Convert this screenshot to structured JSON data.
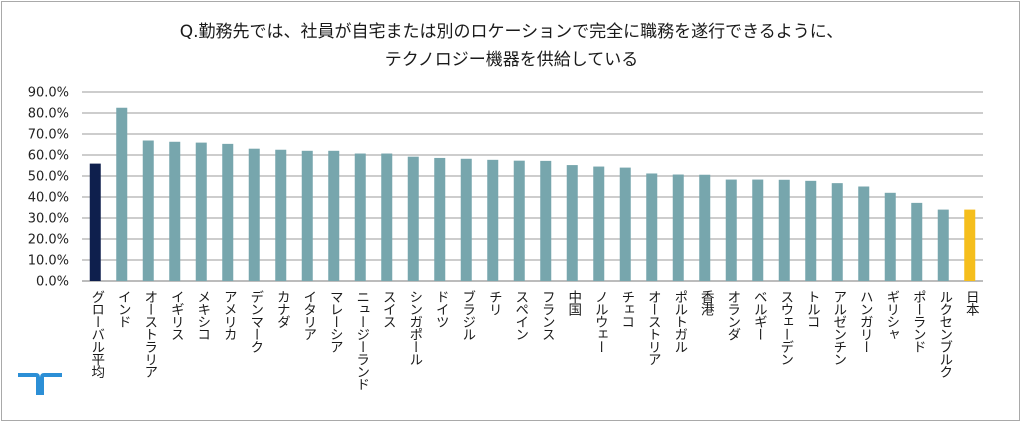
{
  "chart_data": {
    "type": "bar",
    "title": "Q.勤務先では、社員が自宅または別のロケーションで完全に職務を遂行できるように、",
    "subtitle": "テクノロジー機器を供給している",
    "ylim": [
      0,
      90
    ],
    "ytick_step": 10,
    "ytick_labels": [
      "0.0%",
      "10.0%",
      "20.0%",
      "30.0%",
      "40.0%",
      "50.0%",
      "60.0%",
      "70.0%",
      "80.0%",
      "90.0%"
    ],
    "grid": true,
    "legend": "none",
    "categories": [
      "グローバル平均",
      "インド",
      "オーストラリア",
      "イギリス",
      "メキシコ",
      "アメリカ",
      "デンマーク",
      "カナダ",
      "イタリア",
      "マレーシア",
      "ニュージーランド",
      "スイス",
      "シンガポール",
      "ドイツ",
      "ブラジル",
      "チリ",
      "スペイン",
      "フランス",
      "中国",
      "ノルウェー",
      "チェコ",
      "オーストリア",
      "ポルトガル",
      "香港",
      "オランダ",
      "ベルギー",
      "スウェーデン",
      "トルコ",
      "アルゼンチン",
      "ハンガリー",
      "ギリシャ",
      "ポーランド",
      "ルクセンブルク",
      "日本"
    ],
    "values": [
      55.9,
      82.5,
      66.9,
      66.3,
      65.9,
      65.3,
      63.0,
      62.5,
      62.0,
      62.0,
      60.7,
      60.7,
      59.2,
      58.6,
      58.2,
      57.7,
      57.3,
      57.2,
      55.2,
      54.5,
      54.0,
      51.2,
      50.7,
      50.6,
      48.3,
      48.3,
      48.2,
      47.7,
      46.6,
      45.0,
      42.0,
      37.2,
      34.0,
      34.0
    ],
    "colors": {
      "default": "#77a6ad",
      "グローバル平均": "#0e1f4d",
      "日本": "#f5be1c",
      "grid": "#9b9b9b",
      "text": "#222222"
    }
  },
  "logo": {
    "icon": "randstad-logo-icon",
    "color": "#2c8fd6"
  }
}
